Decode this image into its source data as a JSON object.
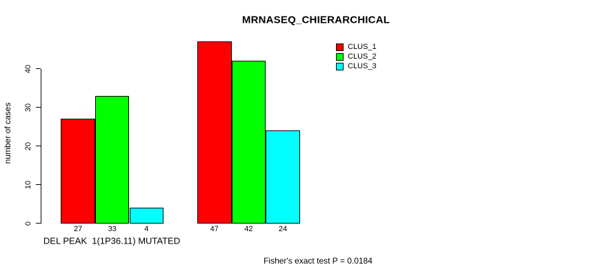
{
  "chart_data": {
    "type": "bar",
    "title": "MRNASEQ_CHIERARCHICAL",
    "xlabel": "",
    "ylabel": "number of cases",
    "categories": [
      "DEL PEAK  1(1P36.11) MUTATED",
      ""
    ],
    "series": [
      {
        "name": "CLUS_1",
        "color": "#FF0000",
        "values": [
          27,
          47
        ]
      },
      {
        "name": "CLUS_2",
        "color": "#00FF00",
        "values": [
          33,
          42
        ]
      },
      {
        "name": "CLUS_3",
        "color": "#00FFFF",
        "values": [
          4,
          24
        ]
      }
    ],
    "yticks": [
      0,
      10,
      20,
      30,
      40
    ],
    "ylim": [
      0,
      40
    ],
    "grid": false,
    "bar_value_labels_shown": true,
    "legend_position": "top-right-inside",
    "annotation": "Fisher's exact test P = 0.0184",
    "axis_color": "#000000",
    "text_color": "#000000",
    "background": "#FFFFFF"
  }
}
